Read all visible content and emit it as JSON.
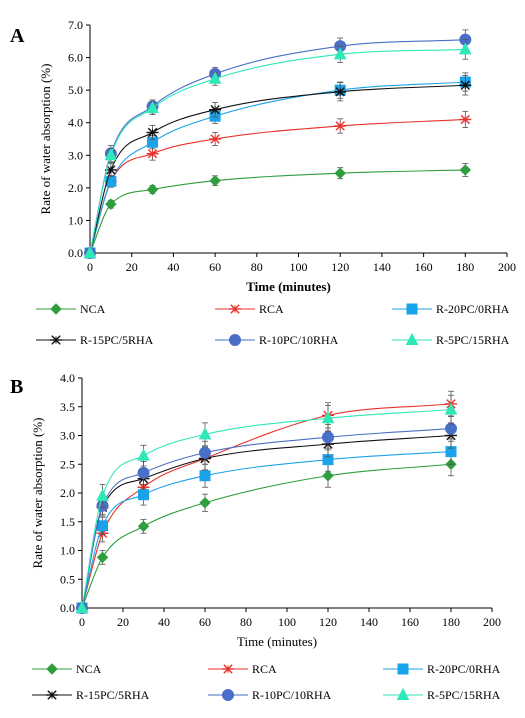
{
  "chart_data": [
    {
      "type": "line",
      "panel_label": "A",
      "xlabel": "Time (minutes)",
      "ylabel": "Rate of water absorption (%)",
      "xlim": [
        0,
        200
      ],
      "ylim": [
        0,
        7
      ],
      "x_ticks": [
        "0",
        "20",
        "40",
        "60",
        "80",
        "100",
        "120",
        "140",
        "160",
        "180",
        "200"
      ],
      "y_ticks": [
        "0.0",
        "1.0",
        "2.0",
        "3.0",
        "4.0",
        "5.0",
        "6.0",
        "7.0"
      ],
      "legend_position": "bottom",
      "grid": false,
      "x": [
        0,
        10,
        30,
        60,
        120,
        180
      ],
      "series": [
        {
          "name": "NCA",
          "color": "#2e9e3e",
          "marker": "diamond",
          "values": [
            0,
            1.5,
            1.95,
            2.22,
            2.45,
            2.55
          ],
          "errors": [
            0,
            0.12,
            0.12,
            0.15,
            0.17,
            0.2
          ]
        },
        {
          "name": "RCA",
          "color": "#e8312a",
          "marker": "asterisk",
          "values": [
            0,
            2.2,
            3.05,
            3.5,
            3.9,
            4.1
          ],
          "errors": [
            0,
            0.15,
            0.2,
            0.2,
            0.22,
            0.25
          ]
        },
        {
          "name": "R-20PC/0RHA",
          "color": "#1aa3e8",
          "marker": "square",
          "values": [
            0,
            2.2,
            3.4,
            4.2,
            5.0,
            5.25
          ],
          "errors": [
            0,
            0.18,
            0.2,
            0.22,
            0.25,
            0.28
          ]
        },
        {
          "name": "R-15PC/5RHA",
          "color": "#111111",
          "marker": "asterisk",
          "values": [
            0,
            2.55,
            3.7,
            4.4,
            4.95,
            5.15
          ],
          "errors": [
            0,
            0.2,
            0.22,
            0.22,
            0.28,
            0.3
          ]
        },
        {
          "name": "R-10PC/10RHA",
          "color": "#4a6fc8",
          "marker": "circle",
          "values": [
            0,
            3.05,
            4.5,
            5.5,
            6.35,
            6.55
          ],
          "errors": [
            0,
            0.25,
            0.2,
            0.2,
            0.25,
            0.3
          ]
        },
        {
          "name": "R-5PC/15RHA",
          "color": "#2ee8b8",
          "marker": "triangle",
          "values": [
            0,
            3.0,
            4.45,
            5.35,
            6.1,
            6.25
          ],
          "errors": [
            0,
            0.22,
            0.2,
            0.2,
            0.25,
            0.3
          ]
        }
      ]
    },
    {
      "type": "line",
      "panel_label": "B",
      "xlabel": "Time (minutes)",
      "ylabel": "Rate of water absorption (%)",
      "xlim": [
        0,
        200
      ],
      "ylim": [
        0,
        4
      ],
      "x_ticks": [
        "0",
        "20",
        "40",
        "60",
        "80",
        "100",
        "120",
        "140",
        "160",
        "180",
        "200"
      ],
      "y_ticks": [
        "0.0",
        "0.5",
        "1.0",
        "1.5",
        "2.0",
        "2.5",
        "3.0",
        "3.5",
        "4.0"
      ],
      "legend_position": "bottom",
      "grid": false,
      "x": [
        0,
        10,
        30,
        60,
        120,
        180
      ],
      "series": [
        {
          "name": "NCA",
          "color": "#2e9e3e",
          "marker": "diamond",
          "values": [
            0,
            0.88,
            1.42,
            1.83,
            2.3,
            2.5
          ],
          "errors": [
            0,
            0.12,
            0.12,
            0.15,
            0.2,
            0.2
          ]
        },
        {
          "name": "RCA",
          "color": "#e8312a",
          "marker": "asterisk",
          "values": [
            0,
            1.3,
            2.1,
            2.6,
            3.35,
            3.55
          ],
          "errors": [
            0,
            0.15,
            0.2,
            0.2,
            0.22,
            0.22
          ]
        },
        {
          "name": "R-20PC/0RHA",
          "color": "#1aa3e8",
          "marker": "square",
          "values": [
            0,
            1.43,
            1.97,
            2.3,
            2.58,
            2.72
          ],
          "errors": [
            0,
            0.15,
            0.18,
            0.2,
            0.2,
            0.22
          ]
        },
        {
          "name": "R-15PC/5RHA",
          "color": "#111111",
          "marker": "asterisk",
          "values": [
            0,
            1.75,
            2.25,
            2.6,
            2.85,
            3.0
          ],
          "errors": [
            0,
            0.15,
            0.18,
            0.2,
            0.22,
            0.22
          ]
        },
        {
          "name": "R-10PC/10RHA",
          "color": "#4a6fc8",
          "marker": "circle",
          "values": [
            0,
            1.78,
            2.35,
            2.7,
            2.97,
            3.12
          ],
          "errors": [
            0,
            0.15,
            0.2,
            0.2,
            0.22,
            0.22
          ]
        },
        {
          "name": "R-5PC/15RHA",
          "color": "#2ee8b8",
          "marker": "triangle",
          "values": [
            0,
            1.95,
            2.65,
            3.02,
            3.3,
            3.45
          ],
          "errors": [
            0,
            0.2,
            0.18,
            0.2,
            0.22,
            0.25
          ]
        }
      ]
    }
  ]
}
